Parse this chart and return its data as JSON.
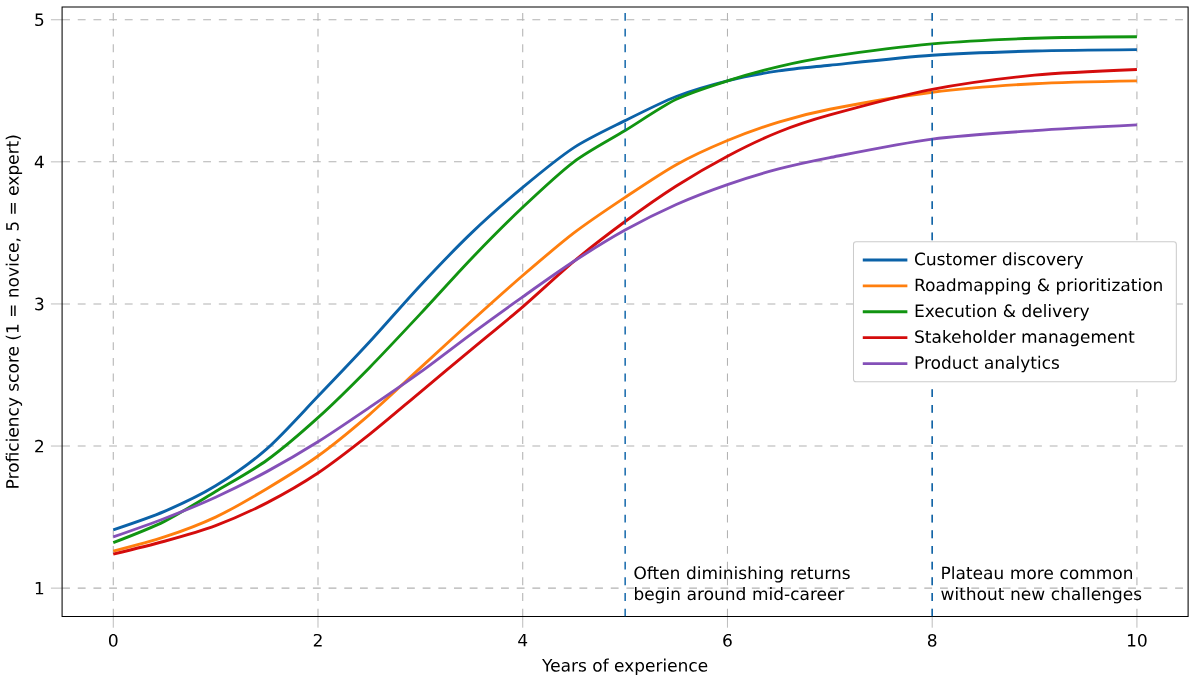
{
  "chart_data": {
    "type": "line",
    "xlabel": "Years of experience",
    "ylabel": "Proficiency score (1 = novice, 5 = expert)",
    "x": [
      0,
      0.5,
      1,
      1.5,
      2,
      2.5,
      3,
      3.5,
      4,
      4.5,
      5,
      5.5,
      6,
      6.5,
      7,
      8,
      9,
      10
    ],
    "series": [
      {
        "name": "Customer discovery",
        "color": "#0b62a8",
        "values": [
          1.41,
          1.54,
          1.72,
          1.98,
          2.35,
          2.73,
          3.13,
          3.5,
          3.82,
          4.1,
          4.29,
          4.46,
          4.57,
          4.64,
          4.68,
          4.75,
          4.78,
          4.79
        ]
      },
      {
        "name": "Roadmapping & prioritization",
        "color": "#ff7f0e",
        "values": [
          1.26,
          1.36,
          1.5,
          1.7,
          1.93,
          2.22,
          2.55,
          2.88,
          3.2,
          3.5,
          3.75,
          3.98,
          4.15,
          4.28,
          4.37,
          4.49,
          4.55,
          4.57
        ]
      },
      {
        "name": "Execution & delivery",
        "color": "#119411",
        "values": [
          1.32,
          1.47,
          1.68,
          1.9,
          2.2,
          2.55,
          2.93,
          3.32,
          3.68,
          4.0,
          4.22,
          4.44,
          4.57,
          4.67,
          4.74,
          4.83,
          4.87,
          4.88
        ]
      },
      {
        "name": "Stakeholder management",
        "color": "#d40c0c",
        "values": [
          1.24,
          1.33,
          1.44,
          1.6,
          1.81,
          2.08,
          2.38,
          2.68,
          2.98,
          3.3,
          3.58,
          3.83,
          4.04,
          4.21,
          4.33,
          4.51,
          4.61,
          4.65
        ]
      },
      {
        "name": "Product analytics",
        "color": "#8450b8",
        "values": [
          1.36,
          1.49,
          1.64,
          1.82,
          2.03,
          2.27,
          2.52,
          2.79,
          3.05,
          3.3,
          3.52,
          3.7,
          3.84,
          3.95,
          4.03,
          4.16,
          4.22,
          4.26
        ]
      }
    ],
    "xlim": [
      -0.5,
      10.5
    ],
    "ylim": [
      0.8,
      5.09
    ],
    "xticks": [
      0,
      2,
      4,
      6,
      8,
      10
    ],
    "yticks": [
      1,
      2,
      3,
      4,
      5
    ],
    "ref_lines": [
      {
        "axis": "x",
        "value": 5,
        "label": "Often diminishing returns begin around mid-career",
        "color": "#0b62a8",
        "line_style": "dashed"
      },
      {
        "axis": "x",
        "value": 8,
        "label": "Plateau more common without new challenges",
        "color": "#0b62a8",
        "line_style": "dashed"
      }
    ],
    "grid": true,
    "legend": "right",
    "line_style": "solid",
    "marker": "none"
  }
}
